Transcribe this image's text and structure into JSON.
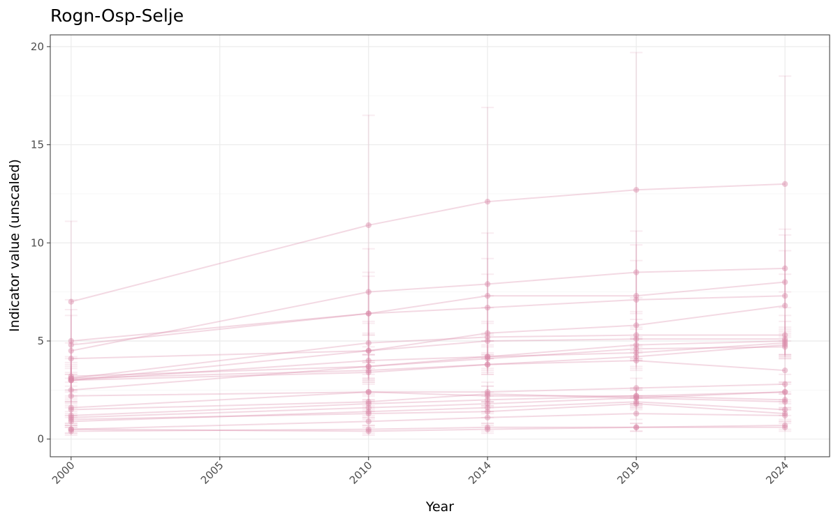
{
  "chart_data": {
    "type": "line",
    "title": "Rogn-Osp-Selje",
    "xlabel": "Year",
    "ylabel": "Indicator value (unscaled)",
    "xlim": [
      1999.3,
      2025.5
    ],
    "ylim": [
      -0.9,
      20.6
    ],
    "x_ticks": [
      2000,
      2005,
      2010,
      2014,
      2019,
      2024
    ],
    "y_ticks": [
      0,
      5,
      10,
      15,
      20
    ],
    "grid": true,
    "legend": "none",
    "color": "#d98aa8",
    "x": [
      2000,
      2010,
      2014,
      2019,
      2024
    ],
    "series": [
      {
        "values": [
          7.0,
          10.9,
          12.1,
          12.7,
          13.0
        ],
        "err": [
          4.1,
          5.6,
          4.8,
          7.0,
          5.5
        ]
      },
      {
        "values": [
          4.5,
          7.5,
          7.9,
          8.5,
          8.7
        ],
        "err": [
          2.6,
          2.2,
          2.6,
          2.1,
          2.0
        ]
      },
      {
        "values": [
          4.8,
          6.4,
          7.3,
          7.3,
          8.0
        ],
        "err": [
          1.5,
          2.1,
          1.9,
          2.6,
          2.4
        ]
      },
      {
        "values": [
          5.0,
          6.4,
          6.7,
          7.1,
          7.3
        ],
        "err": [
          1.6,
          1.9,
          1.7,
          2.0,
          2.3
        ]
      },
      {
        "values": [
          3.0,
          4.5,
          5.4,
          5.8,
          6.8
        ],
        "err": [
          1.2,
          1.5,
          1.3,
          1.4,
          1.6
        ]
      },
      {
        "values": [
          3.1,
          4.9,
          5.2,
          5.3,
          5.3
        ],
        "err": [
          1.0,
          1.0,
          0.8,
          1.2,
          1.0
        ]
      },
      {
        "values": [
          4.1,
          4.5,
          5.0,
          5.1,
          5.1
        ],
        "err": [
          0.8,
          0.9,
          0.9,
          1.0,
          0.9
        ]
      },
      {
        "values": [
          3.0,
          4.0,
          4.2,
          4.8,
          5.0
        ],
        "err": [
          0.8,
          0.7,
          0.8,
          0.8,
          0.7
        ]
      },
      {
        "values": [
          3.2,
          3.7,
          4.2,
          4.4,
          4.9
        ],
        "err": [
          0.7,
          0.6,
          0.6,
          0.7,
          0.6
        ]
      },
      {
        "values": [
          2.5,
          3.7,
          4.1,
          4.6,
          4.7
        ],
        "err": [
          0.6,
          0.6,
          0.6,
          0.6,
          0.6
        ]
      },
      {
        "values": [
          3.0,
          3.4,
          3.8,
          4.2,
          4.8
        ],
        "err": [
          0.6,
          0.5,
          0.5,
          0.6,
          0.6
        ]
      },
      {
        "values": [
          3.1,
          3.5,
          3.8,
          4.0,
          3.5
        ],
        "err": [
          0.6,
          0.5,
          0.5,
          0.5,
          0.6
        ]
      },
      {
        "values": [
          2.2,
          2.4,
          2.4,
          2.6,
          2.8
        ],
        "err": [
          0.5,
          0.5,
          0.5,
          0.5,
          0.5
        ]
      },
      {
        "values": [
          1.6,
          2.4,
          2.2,
          2.2,
          2.4
        ],
        "err": [
          0.4,
          0.4,
          0.5,
          0.4,
          0.5
        ]
      },
      {
        "values": [
          1.5,
          1.9,
          2.3,
          2.1,
          2.4
        ],
        "err": [
          0.4,
          0.4,
          0.4,
          0.4,
          0.4
        ]
      },
      {
        "values": [
          1.2,
          1.8,
          2.0,
          2.2,
          2.0
        ],
        "err": [
          0.4,
          0.4,
          0.4,
          0.4,
          0.4
        ]
      },
      {
        "values": [
          1.1,
          1.6,
          1.8,
          2.1,
          1.9
        ],
        "err": [
          0.3,
          0.4,
          0.4,
          0.4,
          0.4
        ]
      },
      {
        "values": [
          0.9,
          1.4,
          1.6,
          1.9,
          1.5
        ],
        "err": [
          0.3,
          0.3,
          0.3,
          0.3,
          0.3
        ]
      },
      {
        "values": [
          1.0,
          1.3,
          1.4,
          1.8,
          1.3
        ],
        "err": [
          0.3,
          0.3,
          0.3,
          0.3,
          0.3
        ]
      },
      {
        "values": [
          0.5,
          0.9,
          1.1,
          1.3,
          1.2
        ],
        "err": [
          0.2,
          0.2,
          0.3,
          0.3,
          0.3
        ]
      },
      {
        "values": [
          0.5,
          0.4,
          0.5,
          0.6,
          0.7
        ],
        "err": [
          0.2,
          0.2,
          0.2,
          0.2,
          0.2
        ]
      },
      {
        "values": [
          0.4,
          0.5,
          0.6,
          0.6,
          0.6
        ],
        "err": [
          0.2,
          0.2,
          0.2,
          0.2,
          0.2
        ]
      }
    ]
  }
}
